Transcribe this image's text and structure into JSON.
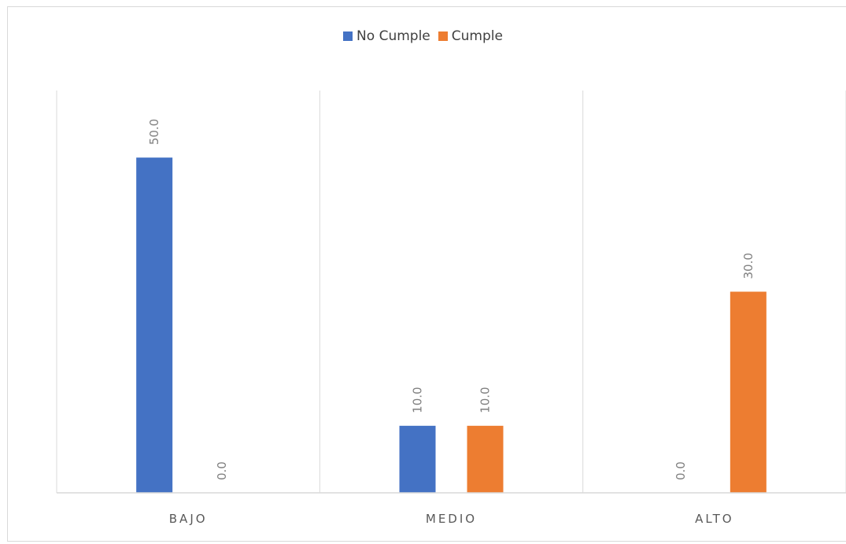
{
  "chart_data": {
    "type": "bar",
    "title": "",
    "xlabel": "",
    "ylabel": "",
    "categories": [
      "BAJO",
      "MEDIO",
      "ALTO"
    ],
    "series": [
      {
        "name": "No Cumple",
        "values": [
          50.0,
          10.0,
          0.0
        ],
        "color": "#4472C4"
      },
      {
        "name": "Cumple",
        "values": [
          0.0,
          10.0,
          30.0
        ],
        "color": "#ED7D31"
      }
    ],
    "ylim": [
      0,
      60
    ],
    "value_format": "0.0",
    "grid": "vertical category separators",
    "legend": "top"
  }
}
